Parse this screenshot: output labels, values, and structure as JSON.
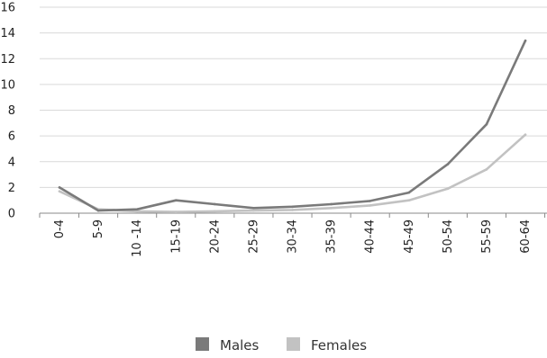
{
  "chart_data": {
    "type": "line",
    "categories": [
      "0-4",
      "5-9",
      "10 -14",
      "15-19",
      "20-24",
      "25-29",
      "30-34",
      "35-39",
      "40-44",
      "45-49",
      "50-54",
      "55-59",
      "60-64"
    ],
    "series": [
      {
        "name": "Males",
        "values": [
          2.0,
          0.2,
          0.3,
          1.0,
          0.7,
          0.4,
          0.5,
          0.7,
          0.95,
          1.6,
          3.8,
          6.9,
          13.4
        ],
        "color": "#7a7a7a"
      },
      {
        "name": "Females",
        "values": [
          1.7,
          0.3,
          0.15,
          0.1,
          0.15,
          0.2,
          0.25,
          0.4,
          0.6,
          1.0,
          1.9,
          3.4,
          6.1
        ],
        "color": "#c2c2c2"
      }
    ],
    "yticks": [
      "0",
      "2",
      "4",
      "6",
      "8",
      "10",
      "12",
      "14",
      "16"
    ],
    "ylim": [
      0,
      16
    ],
    "grid": true,
    "legend_position": "bottom"
  }
}
